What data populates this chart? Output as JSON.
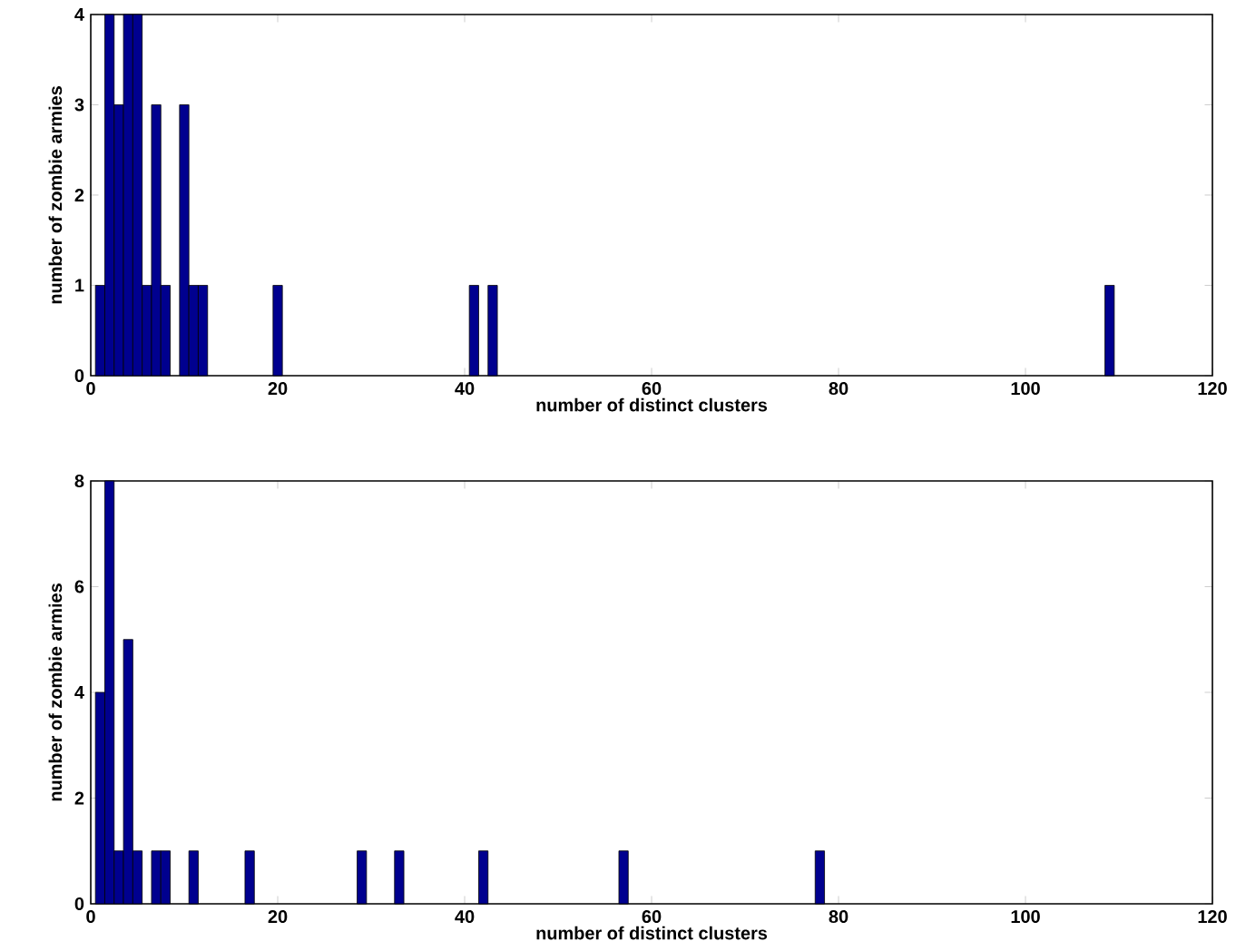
{
  "chart_data": [
    {
      "type": "bar",
      "xlabel": "number of distinct clusters",
      "ylabel": "number of zombie armies",
      "color": "#00008f",
      "x": [
        1,
        2,
        3,
        4,
        5,
        6,
        7,
        8,
        10,
        11,
        12,
        20,
        41,
        43,
        109
      ],
      "values": [
        1,
        4,
        3,
        4,
        4,
        1,
        3,
        1,
        3,
        1,
        1,
        1,
        1,
        1,
        1
      ],
      "xlim": [
        0,
        120
      ],
      "ylim": [
        0,
        4
      ],
      "xticks": [
        0,
        20,
        40,
        60,
        80,
        100,
        120
      ],
      "yticks": [
        0,
        1,
        2,
        3,
        4
      ],
      "grid": false
    },
    {
      "type": "bar",
      "xlabel": "number of distinct clusters",
      "ylabel": "number of zombie armies",
      "color": "#00008f",
      "x": [
        1,
        2,
        3,
        4,
        5,
        7,
        8,
        11,
        17,
        29,
        33,
        42,
        57,
        78
      ],
      "values": [
        4,
        8,
        1,
        5,
        1,
        1,
        1,
        1,
        1,
        1,
        1,
        1,
        1,
        1
      ],
      "xlim": [
        0,
        120
      ],
      "ylim": [
        0,
        8
      ],
      "xticks": [
        0,
        20,
        40,
        60,
        80,
        100,
        120
      ],
      "yticks": [
        0,
        2,
        4,
        6,
        8
      ],
      "grid": false
    }
  ]
}
